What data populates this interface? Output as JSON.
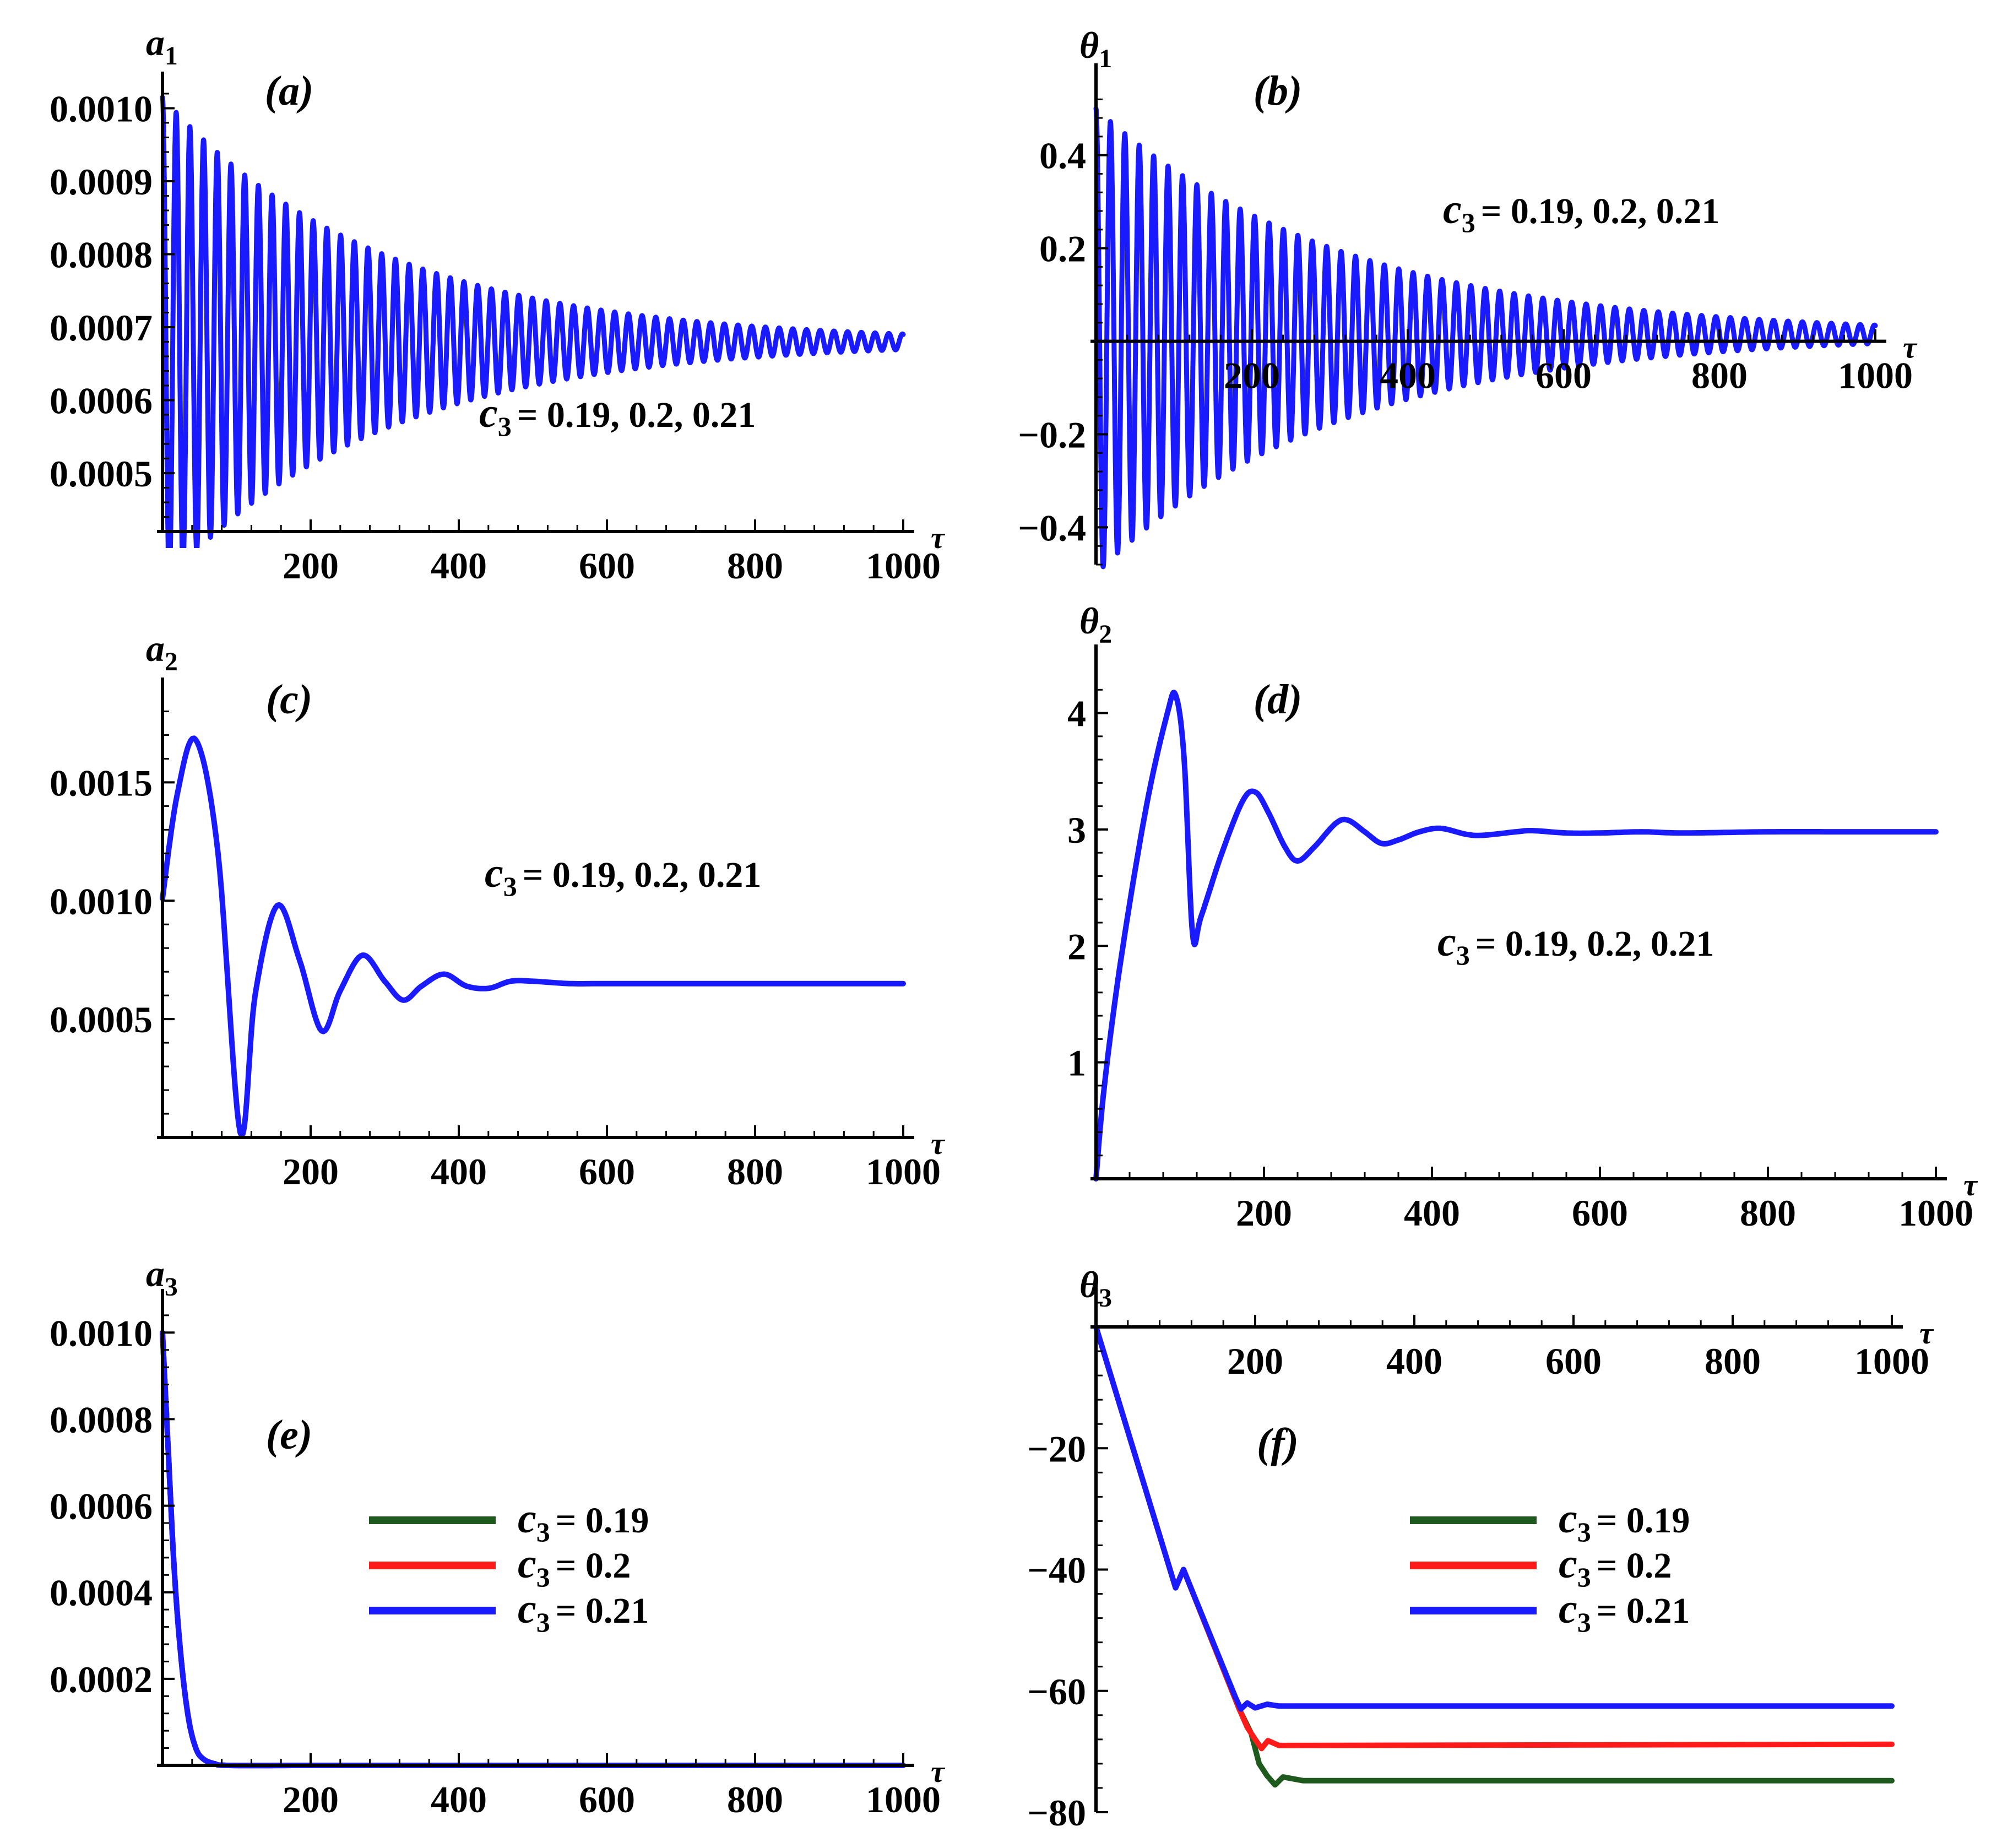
{
  "figure": {
    "colors": {
      "c019": "#1e5a1e",
      "c020": "#ff1a1a",
      "c021": "#1a1aff",
      "axis": "#000000"
    }
  },
  "chart_data": [
    {
      "type": "line",
      "panel_label": "(a)",
      "ylabel_base": "a",
      "ylabel_sub": "1",
      "xlabel": "τ",
      "annotation": "= 0.19, 0.2, 0.21",
      "annotation_var": "c",
      "annotation_sub": "3",
      "xlim": [
        0,
        1000
      ],
      "ylim": [
        0.00042,
        0.00102
      ],
      "x_ticks": [
        200,
        400,
        600,
        800,
        1000
      ],
      "x_tick_labels": [
        "200",
        "400",
        "600",
        "800",
        "1000"
      ],
      "y_ticks": [
        0.0005,
        0.0006,
        0.0007,
        0.0008,
        0.0009,
        0.001
      ],
      "y_tick_labels": [
        "0.0005",
        "0.0006",
        "0.0007",
        "0.0008",
        "0.0009",
        "0.0010"
      ],
      "model": {
        "kind": "damped_osc",
        "x_max": 1000,
        "center": 0.00068,
        "amp": 0.000335,
        "tau": 290,
        "period": 18.5,
        "phase": 1.5708,
        "x_start": 0,
        "x_end": 1000
      },
      "series": [
        {
          "name": "c3 = 0.19, 0.2, 0.21",
          "color": "#1a1aff"
        }
      ]
    },
    {
      "type": "line",
      "panel_label": "(b)",
      "ylabel_base": "θ",
      "ylabel_sub": "1",
      "xlabel": "τ",
      "annotation": "= 0.19, 0.2, 0.21",
      "annotation_var": "c",
      "annotation_sub": "3",
      "xlim": [
        0,
        1000
      ],
      "ylim": [
        -0.48,
        0.55
      ],
      "x_ticks": [
        200,
        400,
        600,
        800,
        1000
      ],
      "x_tick_labels": [
        "200",
        "400",
        "600",
        "800",
        "1000"
      ],
      "y_ticks": [
        -0.4,
        -0.2,
        0.2,
        0.4
      ],
      "y_tick_labels": [
        "−0.4",
        "−0.2",
        "0.2",
        "0.4"
      ],
      "model": {
        "kind": "damped_osc",
        "center": 0.0,
        "amp": 0.5,
        "tau": 310,
        "period": 18.5,
        "phase": 1.5708,
        "offset_decay": 0.015,
        "x_start": 0,
        "x_end": 1000
      },
      "series": [
        {
          "name": "c3 = 0.19, 0.2, 0.21",
          "color": "#1a1aff"
        }
      ]
    },
    {
      "type": "line",
      "panel_label": "(c)",
      "ylabel_base": "a",
      "ylabel_sub": "2",
      "xlabel": "τ",
      "annotation": "= 0.19, 0.2, 0.21",
      "annotation_var": "c",
      "annotation_sub": "3",
      "xlim": [
        0,
        1000
      ],
      "ylim": [
        0.0,
        0.00185
      ],
      "x_ticks": [
        200,
        400,
        600,
        800,
        1000
      ],
      "x_tick_labels": [
        "200",
        "400",
        "600",
        "800",
        "1000"
      ],
      "y_ticks": [
        0.0005,
        0.001,
        0.0015
      ],
      "y_tick_labels": [
        "0.0005",
        "0.0010",
        "0.0015"
      ],
      "model": {
        "kind": "spline",
        "points": [
          [
            0,
            0.00101
          ],
          [
            20,
            0.00145
          ],
          [
            45,
            0.00168
          ],
          [
            75,
            0.0012
          ],
          [
            105,
            2e-05
          ],
          [
            125,
            0.0006
          ],
          [
            155,
            0.00098
          ],
          [
            185,
            0.00075
          ],
          [
            215,
            0.00045
          ],
          [
            240,
            0.00062
          ],
          [
            270,
            0.00077
          ],
          [
            300,
            0.00066
          ],
          [
            325,
            0.00058
          ],
          [
            350,
            0.00064
          ],
          [
            380,
            0.00069
          ],
          [
            410,
            0.00064
          ],
          [
            440,
            0.00063
          ],
          [
            470,
            0.00066
          ],
          [
            500,
            0.00066
          ],
          [
            550,
            0.00065
          ],
          [
            600,
            0.00065
          ],
          [
            700,
            0.00065
          ],
          [
            800,
            0.00065
          ],
          [
            900,
            0.00065
          ],
          [
            1000,
            0.00065
          ]
        ]
      },
      "series": [
        {
          "name": "c3 = 0.19, 0.2, 0.21",
          "color": "#1a1aff"
        }
      ]
    },
    {
      "type": "line",
      "panel_label": "(d)",
      "ylabel_base": "θ",
      "ylabel_sub": "2",
      "xlabel": "τ",
      "annotation": "= 0.19, 0.2, 0.21",
      "annotation_var": "c",
      "annotation_sub": "3",
      "xlim": [
        0,
        1000
      ],
      "ylim": [
        0.0,
        4.4
      ],
      "x_ticks": [
        200,
        400,
        600,
        800,
        1000
      ],
      "x_tick_labels": [
        "200",
        "400",
        "600",
        "800",
        "1000"
      ],
      "y_ticks": [
        1,
        2,
        3,
        4
      ],
      "y_tick_labels": [
        "1",
        "2",
        "3",
        "4"
      ],
      "model": {
        "kind": "spline",
        "points": [
          [
            0,
            0.0
          ],
          [
            10,
            0.8
          ],
          [
            30,
            1.9
          ],
          [
            60,
            3.2
          ],
          [
            85,
            4.0
          ],
          [
            95,
            4.15
          ],
          [
            105,
            3.6
          ],
          [
            115,
            2.1
          ],
          [
            125,
            2.25
          ],
          [
            150,
            2.8
          ],
          [
            175,
            3.25
          ],
          [
            190,
            3.32
          ],
          [
            205,
            3.15
          ],
          [
            225,
            2.85
          ],
          [
            240,
            2.73
          ],
          [
            260,
            2.85
          ],
          [
            285,
            3.05
          ],
          [
            300,
            3.08
          ],
          [
            320,
            2.98
          ],
          [
            340,
            2.88
          ],
          [
            360,
            2.91
          ],
          [
            385,
            2.98
          ],
          [
            410,
            3.01
          ],
          [
            440,
            2.96
          ],
          [
            460,
            2.95
          ],
          [
            500,
            2.98
          ],
          [
            520,
            2.99
          ],
          [
            560,
            2.97
          ],
          [
            600,
            2.97
          ],
          [
            650,
            2.98
          ],
          [
            700,
            2.97
          ],
          [
            800,
            2.98
          ],
          [
            900,
            2.98
          ],
          [
            1000,
            2.98
          ]
        ]
      },
      "series": [
        {
          "name": "c3 = 0.19, 0.2, 0.21",
          "color": "#1a1aff"
        }
      ]
    },
    {
      "type": "line",
      "panel_label": "(e)",
      "ylabel_base": "a",
      "ylabel_sub": "3",
      "xlabel": "τ",
      "xlim": [
        0,
        1000
      ],
      "ylim": [
        0.0,
        0.00105
      ],
      "x_ticks": [
        200,
        400,
        600,
        800,
        1000
      ],
      "x_tick_labels": [
        "200",
        "400",
        "600",
        "800",
        "1000"
      ],
      "y_ticks": [
        0.0002,
        0.0004,
        0.0006,
        0.0008,
        0.001
      ],
      "y_tick_labels": [
        "0.0002",
        "0.0004",
        "0.0006",
        "0.0008",
        "0.0010"
      ],
      "model": {
        "kind": "spline",
        "points": [
          [
            0,
            0.001
          ],
          [
            8,
            0.00072
          ],
          [
            16,
            0.00045
          ],
          [
            25,
            0.00025
          ],
          [
            35,
            0.00011
          ],
          [
            45,
            4e-05
          ],
          [
            55,
            1.5e-05
          ],
          [
            70,
            4e-06
          ],
          [
            90,
            0.0
          ],
          [
            200,
            0.0
          ],
          [
            400,
            0.0
          ],
          [
            600,
            0.0
          ],
          [
            800,
            0.0
          ],
          [
            1000,
            0.0
          ]
        ]
      },
      "legend": [
        {
          "var": "c",
          "sub": "3",
          "text": "= 0.19",
          "color": "#1e5a1e"
        },
        {
          "var": "c",
          "sub": "3",
          "text": "= 0.2",
          "color": "#ff1a1a"
        },
        {
          "var": "c",
          "sub": "3",
          "text": "= 0.21",
          "color": "#1a1aff"
        }
      ],
      "series": [
        {
          "name": "c3 = 0.19",
          "color": "#1e5a1e"
        },
        {
          "name": "c3 = 0.2",
          "color": "#ff1a1a"
        },
        {
          "name": "c3 = 0.21",
          "color": "#1a1aff"
        }
      ]
    },
    {
      "type": "line",
      "panel_label": "(f)",
      "ylabel_base": "θ",
      "ylabel_sub": "3",
      "xlabel": "τ",
      "xlim": [
        0,
        1000
      ],
      "ylim": [
        -80,
        4
      ],
      "x_ticks": [
        200,
        400,
        600,
        800,
        1000
      ],
      "x_tick_labels": [
        "200",
        "400",
        "600",
        "800",
        "1000"
      ],
      "y_ticks": [
        -20,
        -40,
        -60,
        -80
      ],
      "y_tick_labels": [
        "−20",
        "−40",
        "−60",
        "−80"
      ],
      "legend": [
        {
          "var": "c",
          "sub": "3",
          "text": "= 0.19",
          "color": "#1e5a1e"
        },
        {
          "var": "c",
          "sub": "3",
          "text": "= 0.2",
          "color": "#ff1a1a"
        },
        {
          "var": "c",
          "sub": "3",
          "text": "= 0.21",
          "color": "#1a1aff"
        }
      ],
      "series": [
        {
          "name": "c3 = 0.19",
          "color": "#1e5a1e",
          "points": [
            [
              0,
              0
            ],
            [
              100,
              -43
            ],
            [
              110,
              -40
            ],
            [
              180,
              -63
            ],
            [
              195,
              -67
            ],
            [
              205,
              -72
            ],
            [
              215,
              -74
            ],
            [
              225,
              -75.5
            ],
            [
              235,
              -74.2
            ],
            [
              260,
              -74.8
            ],
            [
              1000,
              -74.8
            ]
          ]
        },
        {
          "name": "c3 = 0.2",
          "color": "#ff1a1a",
          "points": [
            [
              0,
              0
            ],
            [
              100,
              -43
            ],
            [
              110,
              -40
            ],
            [
              180,
              -63
            ],
            [
              190,
              -66
            ],
            [
              200,
              -68
            ],
            [
              208,
              -69.5
            ],
            [
              216,
              -68.2
            ],
            [
              230,
              -69
            ],
            [
              1000,
              -68.8
            ]
          ]
        },
        {
          "name": "c3 = 0.21",
          "color": "#1a1aff",
          "points": [
            [
              0,
              0
            ],
            [
              100,
              -43
            ],
            [
              110,
              -40
            ],
            [
              175,
              -61
            ],
            [
              182,
              -63
            ],
            [
              190,
              -62
            ],
            [
              200,
              -62.8
            ],
            [
              215,
              -62.2
            ],
            [
              230,
              -62.5
            ],
            [
              1000,
              -62.5
            ]
          ]
        }
      ]
    }
  ]
}
